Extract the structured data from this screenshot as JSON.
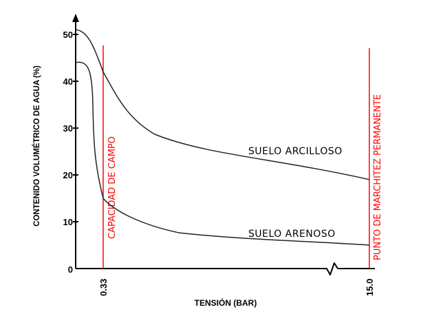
{
  "chart_data": {
    "type": "line",
    "xlabel": "TENSIÓN (BAR)",
    "ylabel": "CONTENIDO VOLUMÉTRICO DE AGUA (%)",
    "ylim": [
      0,
      52
    ],
    "y_ticks": [
      "50",
      "40",
      "30",
      "20",
      "10",
      "0"
    ],
    "x_ticks": [
      "0.33",
      "15.0"
    ],
    "axis_break": true,
    "grid": false,
    "accent_color": "#ff0000",
    "reference_lines": [
      {
        "x": 0.33,
        "label": "CAPACIDAD DE CAMPO"
      },
      {
        "x": 15.0,
        "label": "PUNTO DE MARCHITEZ PERMANENTE"
      }
    ],
    "series": [
      {
        "name": "SUELO ARCILLOSO",
        "points": [
          [
            0,
            51
          ],
          [
            0.33,
            42
          ],
          [
            15.0,
            19
          ]
        ]
      },
      {
        "name": "SUELO ARENOSO",
        "points": [
          [
            0,
            44
          ],
          [
            0.33,
            15
          ],
          [
            15.0,
            5
          ]
        ]
      }
    ]
  }
}
